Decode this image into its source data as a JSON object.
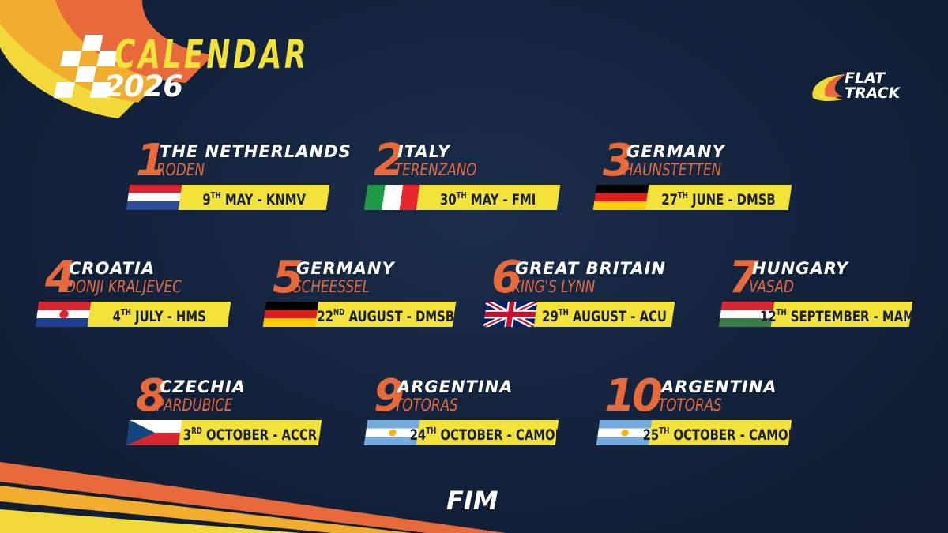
{
  "header": {
    "title": "CALENDAR",
    "year": "2026"
  },
  "logos": {
    "flat_track": "FLAT TRACK",
    "fim": "FIM"
  },
  "colors": {
    "background": "#13223a",
    "yellow": "#f2e23a",
    "orange": "#e8693a",
    "white": "#ffffff"
  },
  "events": [
    {
      "number": "1",
      "country": "THE NETHERLANDS",
      "city": "RODEN",
      "day": "9",
      "suffix": "TH",
      "rest": "MAY - KNMV",
      "flag": "netherlands"
    },
    {
      "number": "2",
      "country": "ITALY",
      "city": "TERENZANO",
      "day": "30",
      "suffix": "TH",
      "rest": "MAY - FMI",
      "flag": "italy"
    },
    {
      "number": "3",
      "country": "GERMANY",
      "city": "HAUNSTETTEN",
      "day": "27",
      "suffix": "TH",
      "rest": "JUNE - DMSB",
      "flag": "germany"
    },
    {
      "number": "4",
      "country": "CROATIA",
      "city": "DONJI KRALJEVEC",
      "day": "4",
      "suffix": "TH",
      "rest": "JULY - HMS",
      "flag": "croatia"
    },
    {
      "number": "5",
      "country": "GERMANY",
      "city": "SCHEESSEL",
      "day": "22",
      "suffix": "ND",
      "rest": "AUGUST - DMSB",
      "flag": "germany"
    },
    {
      "number": "6",
      "country": "GREAT BRITAIN",
      "city": "KING'S LYNN",
      "day": "29",
      "suffix": "TH",
      "rest": "AUGUST - ACU",
      "flag": "great-britain"
    },
    {
      "number": "7",
      "country": "HUNGARY",
      "city": "VASAD",
      "day": "12",
      "suffix": "TH",
      "rest": "SEPTEMBER - MAMS",
      "flag": "hungary"
    },
    {
      "number": "8",
      "country": "CZECHIA",
      "city": "PARDUBICE",
      "day": "3",
      "suffix": "RD",
      "rest": "OCTOBER - ACCR",
      "flag": "czechia"
    },
    {
      "number": "9",
      "country": "ARGENTINA",
      "city": "TOTORAS",
      "day": "24",
      "suffix": "TH",
      "rest": "OCTOBER - CAMOD",
      "flag": "argentina"
    },
    {
      "number": "10",
      "country": "ARGENTINA",
      "city": "TOTORAS",
      "day": "25",
      "suffix": "TH",
      "rest": "OCTOBER - CAMOD",
      "flag": "argentina"
    }
  ]
}
